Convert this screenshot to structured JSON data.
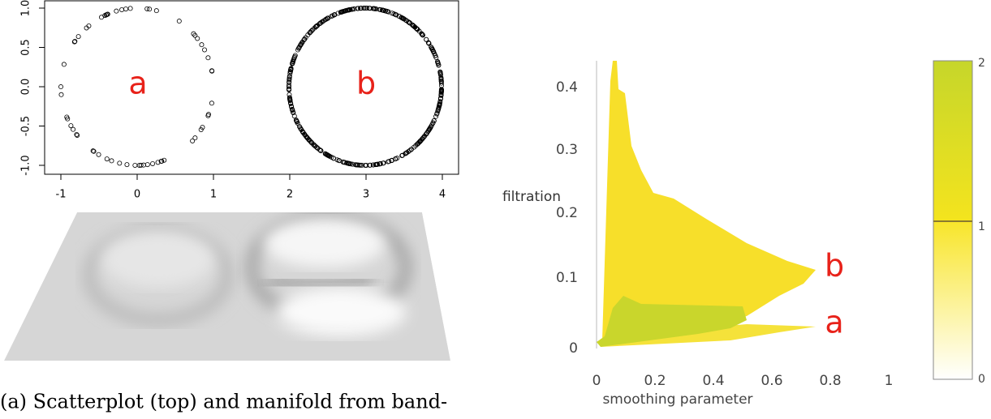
{
  "scatterplot": {
    "labels": [
      "a",
      "b"
    ],
    "xticks": [
      "-1",
      "0",
      "1",
      "2",
      "3",
      "4"
    ],
    "yticks": [
      "1.0",
      "0.5",
      "0.0",
      "-0.5",
      "-1.0"
    ]
  },
  "landscape": {
    "y_label": "filtration",
    "x_label": "smoothing parameter",
    "yticks": [
      "0.4",
      "0.3",
      "0.2",
      "0.1",
      "0"
    ],
    "xticks": [
      "0",
      "0.2",
      "0.4",
      "0.6",
      "0.8",
      "1"
    ],
    "labels": [
      "b",
      "a"
    ],
    "colorbar_ticks": [
      "2",
      "1",
      "0"
    ]
  },
  "caption": "(a) Scatterplot (top) and manifold from band-"
}
